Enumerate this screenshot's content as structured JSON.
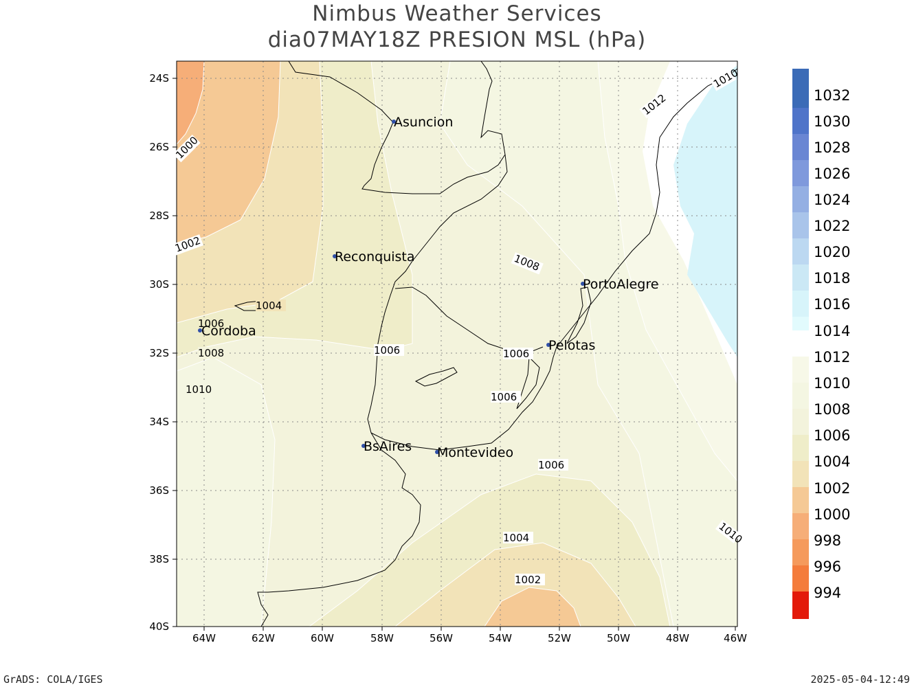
{
  "title": {
    "line1": "Nimbus Weather Services",
    "line2": "dia07MAY18Z PRESION MSL (hPa)"
  },
  "map": {
    "lat_ticks": [
      "24S",
      "26S",
      "28S",
      "30S",
      "32S",
      "34S",
      "36S",
      "38S",
      "40S"
    ],
    "lon_ticks": [
      "64W",
      "62W",
      "60W",
      "58W",
      "56W",
      "54W",
      "52W",
      "50W",
      "48W",
      "46W"
    ],
    "cities": [
      {
        "name": "Asuncion",
        "lon": -57.6,
        "lat": -25.3
      },
      {
        "name": "Reconquista",
        "lon": -59.65,
        "lat": -29.15
      },
      {
        "name": "PortoAlegre",
        "lon": -51.2,
        "lat": -30.0
      },
      {
        "name": "Cordoba",
        "lon": -64.2,
        "lat": -31.4
      },
      {
        "name": "Pelotas",
        "lon": -52.35,
        "lat": -31.75
      },
      {
        "name": "BsAires",
        "lon": -58.7,
        "lat": -34.7
      },
      {
        "name": "Montevideo",
        "lon": -56.2,
        "lat": -34.9
      }
    ],
    "contour_labels": [
      "1000",
      "1002",
      "1004",
      "1006",
      "1008",
      "1010",
      "1012",
      "1010",
      "1010",
      "1008",
      "1006",
      "1006",
      "1006",
      "1006",
      "1004",
      "1002"
    ]
  },
  "colorbar": {
    "levels": [
      "1032",
      "1030",
      "1028",
      "1026",
      "1024",
      "1022",
      "1020",
      "1018",
      "1016",
      "1014",
      "1012",
      "1010",
      "1008",
      "1006",
      "1004",
      "1002",
      "1000",
      "998",
      "996",
      "994"
    ],
    "colors": {
      "c1032": "#3b6bb7",
      "c1030": "#4f74c9",
      "c1028": "#6a86d3",
      "c1026": "#7f99dc",
      "c1024": "#94afe3",
      "c1022": "#a9c4ea",
      "c1020": "#bcd8f1",
      "c1018": "#cbe8f5",
      "c1016": "#d7f4fa",
      "c1014": "#e2fbfd",
      "white": "#ffffff",
      "c1012": "#f7f8e8",
      "c1010": "#f4f6e2",
      "c1008": "#f3f3dc",
      "c1006": "#efedc9",
      "c1004": "#f2e3b8",
      "c1002": "#f5c995",
      "c1000": "#f6ae78",
      "c998": "#f59a5c",
      "c996": "#f47c3c",
      "c994": "#e31a0a"
    }
  },
  "footer": {
    "left": "GrADS: COLA/IGES",
    "right": "2025-05-04-12:49"
  }
}
